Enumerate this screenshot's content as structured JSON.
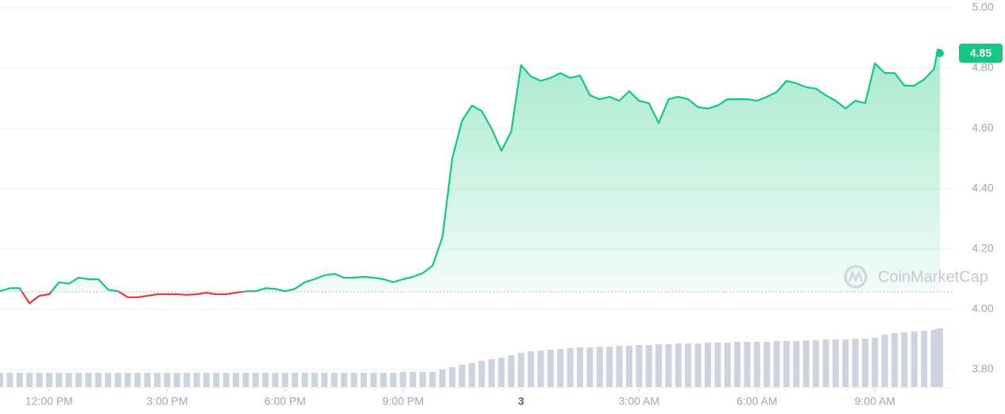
{
  "chart_data": {
    "type": "line",
    "watermark": "CoinMarketCap",
    "color": "#16c784",
    "down_color": "#ea3943",
    "baseline": 4.058,
    "grid": true,
    "x": [
      10.75,
      11,
      11.25,
      11.5,
      11.75,
      12,
      12.25,
      12.5,
      12.75,
      13,
      13.25,
      13.5,
      13.75,
      14,
      14.25,
      14.5,
      14.75,
      15,
      15.25,
      15.5,
      15.75,
      16,
      16.25,
      16.5,
      16.75,
      17,
      17.25,
      17.5,
      17.75,
      18,
      18.25,
      18.5,
      18.75,
      19,
      19.25,
      19.5,
      19.75,
      20,
      20.25,
      20.5,
      20.75,
      21,
      21.25,
      21.5,
      21.75,
      22,
      22.25,
      22.5,
      22.75,
      23,
      23.25,
      23.5,
      23.75,
      24,
      24.25,
      24.5,
      24.75,
      25,
      25.25,
      25.5,
      25.75,
      26,
      26.25,
      26.5,
      26.75,
      27,
      27.25,
      27.5,
      27.75,
      28,
      28.25,
      28.5,
      28.75,
      29,
      29.25,
      29.5,
      29.75,
      30,
      30.25,
      30.5,
      30.75,
      31,
      31.25,
      31.5,
      31.75,
      32,
      32.25,
      32.5,
      32.75,
      33,
      33.25,
      33.5,
      33.75,
      34,
      34.25,
      34.5,
      34.6,
      34.65
    ],
    "values": [
      4.06,
      4.07,
      4.07,
      4.02,
      4.045,
      4.05,
      4.09,
      4.085,
      4.105,
      4.1,
      4.1,
      4.065,
      4.06,
      4.04,
      4.04,
      4.045,
      4.05,
      4.05,
      4.05,
      4.048,
      4.05,
      4.055,
      4.05,
      4.05,
      4.055,
      4.06,
      4.06,
      4.07,
      4.068,
      4.06,
      4.068,
      4.09,
      4.1,
      4.113,
      4.118,
      4.105,
      4.105,
      4.108,
      4.105,
      4.1,
      4.09,
      4.1,
      4.108,
      4.12,
      4.145,
      4.24,
      4.5,
      4.626,
      4.676,
      4.658,
      4.6,
      4.526,
      4.59,
      4.81,
      4.773,
      4.758,
      4.768,
      4.784,
      4.768,
      4.776,
      4.71,
      4.697,
      4.705,
      4.692,
      4.724,
      4.692,
      4.684,
      4.618,
      4.697,
      4.705,
      4.697,
      4.671,
      4.666,
      4.676,
      4.697,
      4.697,
      4.697,
      4.692,
      4.705,
      4.721,
      4.758,
      4.75,
      4.737,
      4.732,
      4.71,
      4.692,
      4.666,
      4.692,
      4.684,
      4.816,
      4.784,
      4.784,
      4.742,
      4.742,
      4.763,
      4.797,
      4.863,
      4.85
    ],
    "volume": {
      "color": "#cfd3e0",
      "values": [
        18,
        18,
        18,
        18,
        18,
        18,
        18,
        18,
        18,
        18,
        18,
        18,
        18,
        18,
        18,
        18,
        18,
        18,
        18,
        18,
        18,
        18,
        18,
        18,
        18,
        18,
        18,
        18,
        18,
        18,
        18,
        18,
        18,
        18,
        18,
        18,
        18,
        18,
        18,
        18,
        18,
        19,
        19,
        19,
        19,
        22,
        25,
        28,
        30,
        33,
        35,
        37,
        40,
        43,
        45,
        46,
        47,
        48,
        49,
        50,
        50,
        51,
        51,
        52,
        52,
        53,
        53,
        54,
        54,
        55,
        55,
        55,
        56,
        56,
        56,
        57,
        57,
        57,
        57,
        58,
        58,
        58,
        59,
        59,
        60,
        60,
        60,
        61,
        61,
        62,
        66,
        68,
        69,
        70,
        71,
        72,
        73,
        74
      ]
    },
    "xlim": [
      10.75,
      34.65
    ],
    "xticks": [
      {
        "value": 12,
        "label": "12:00 PM"
      },
      {
        "value": 15,
        "label": "3:00 PM"
      },
      {
        "value": 18,
        "label": "6:00 PM"
      },
      {
        "value": 21,
        "label": "9:00 PM"
      },
      {
        "value": 24,
        "label": "3"
      },
      {
        "value": 27,
        "label": "3:00 AM"
      },
      {
        "value": 30,
        "label": "6:00 AM"
      },
      {
        "value": 33,
        "label": "9:00 AM"
      }
    ],
    "ylim": [
      3.74,
      5.03
    ],
    "yticks": [
      {
        "value": 3.8,
        "label": "3.80"
      },
      {
        "value": 4.0,
        "label": "4.00"
      },
      {
        "value": 4.2,
        "label": "4.20"
      },
      {
        "value": 4.4,
        "label": "4.40"
      },
      {
        "value": 4.6,
        "label": "4.60"
      },
      {
        "value": 4.8,
        "label": "4.80"
      },
      {
        "value": 5.0,
        "label": "5.00"
      }
    ]
  }
}
